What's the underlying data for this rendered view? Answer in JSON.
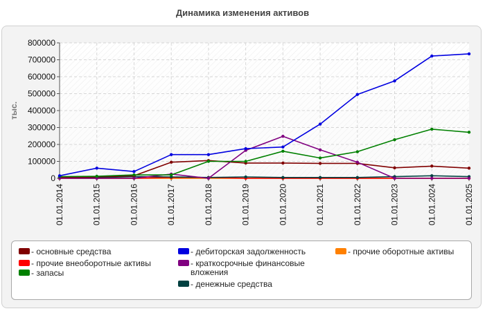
{
  "chart_data": {
    "type": "line",
    "title": "Динамика изменения активов",
    "ylabel": "тыс.",
    "xlabel": "",
    "ylim": [
      0,
      800000
    ],
    "yticks": [
      0,
      100000,
      200000,
      300000,
      400000,
      500000,
      600000,
      700000,
      800000
    ],
    "grid": true,
    "legend_position": "bottom",
    "categories": [
      "01.01.2014",
      "01.01.2015",
      "01.01.2016",
      "01.01.2017",
      "01.01.2018",
      "01.01.2019",
      "01.01.2020",
      "01.01.2021",
      "01.01.2022",
      "01.01.2023",
      "01.01.2024",
      "01.01.2025"
    ],
    "series": [
      {
        "name": "основные средства",
        "color": "#800000",
        "values": [
          5000,
          8000,
          15000,
          95000,
          105000,
          90000,
          90000,
          88000,
          88000,
          62000,
          72000,
          60000
        ]
      },
      {
        "name": "прочие внеоборотные активы",
        "color": "#ff0000",
        "values": [
          0,
          0,
          0,
          5000,
          5000,
          0,
          0,
          0,
          0,
          0,
          0,
          0
        ]
      },
      {
        "name": "запасы",
        "color": "#008000",
        "values": [
          10000,
          12000,
          20000,
          20000,
          100000,
          100000,
          160000,
          120000,
          157000,
          228000,
          290000,
          272000
        ]
      },
      {
        "name": "дебиторская задолженность",
        "color": "#0000e0",
        "values": [
          15000,
          60000,
          40000,
          140000,
          140000,
          175000,
          185000,
          320000,
          495000,
          575000,
          722000,
          735000
        ]
      },
      {
        "name": "краткосрочные финансовые вложения",
        "color": "#800080",
        "values": [
          0,
          0,
          0,
          25000,
          0,
          165000,
          248000,
          168000,
          95000,
          0,
          0,
          0
        ]
      },
      {
        "name": "денежные средства",
        "color": "#004040",
        "values": [
          5000,
          5000,
          10000,
          8000,
          5000,
          8000,
          5000,
          5000,
          5000,
          10000,
          15000,
          10000
        ]
      },
      {
        "name": "прочие оборотные активы",
        "color": "#ff8000",
        "values": [
          0,
          0,
          0,
          0,
          0,
          0,
          0,
          0,
          0,
          0,
          0,
          0
        ]
      }
    ]
  }
}
